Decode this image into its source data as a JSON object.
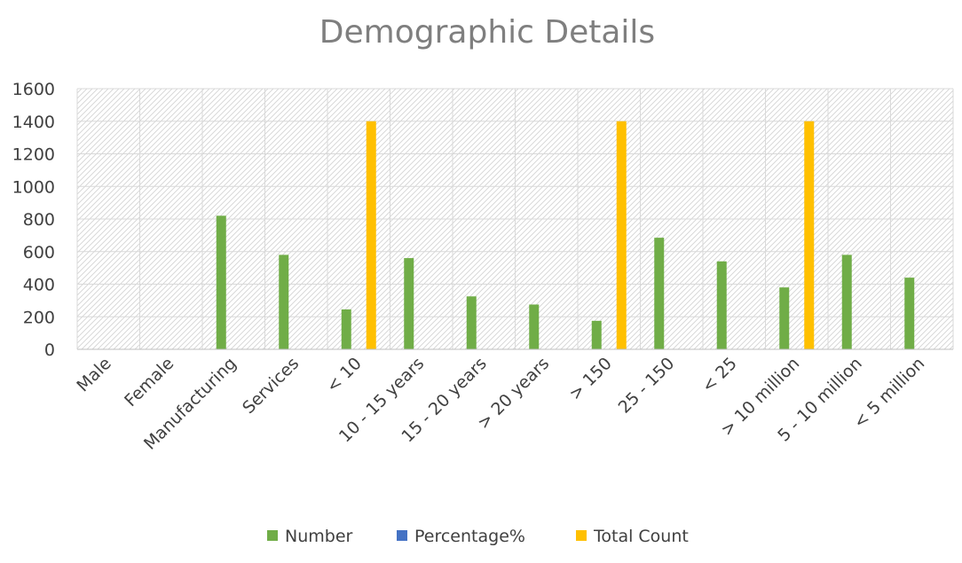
{
  "chart_data": {
    "type": "bar",
    "title": "Demographic Details",
    "xlabel": "",
    "ylabel": "",
    "ylim": [
      0,
      1600
    ],
    "yticks": [
      0,
      200,
      400,
      600,
      800,
      1000,
      1200,
      1400,
      1600
    ],
    "grid": true,
    "legend_position": "bottom",
    "categories": [
      "Male",
      "Female",
      "Manufacturing",
      "Services",
      "< 10",
      "10 - 15 years",
      "15 - 20 years",
      "> 20 years",
      "> 150",
      "25 - 150",
      "< 25",
      "> 10 million",
      "5 - 10 million",
      "< 5 million"
    ],
    "series": [
      {
        "name": "Number",
        "color": "#70ad47",
        "values": [
          null,
          null,
          820,
          580,
          245,
          560,
          325,
          275,
          175,
          685,
          540,
          380,
          580,
          440
        ]
      },
      {
        "name": "Percentage%",
        "color": "#4472c4",
        "values": [
          null,
          null,
          null,
          null,
          null,
          null,
          null,
          null,
          null,
          null,
          null,
          null,
          null,
          null
        ]
      },
      {
        "name": "Total Count",
        "color": "#ffc000",
        "values": [
          null,
          null,
          null,
          null,
          1400,
          null,
          null,
          null,
          1400,
          null,
          null,
          1400,
          null,
          null
        ]
      }
    ]
  }
}
